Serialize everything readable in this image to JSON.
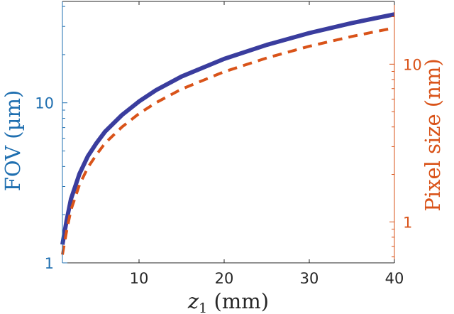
{
  "chart_data": {
    "type": "line",
    "xlabel_var": "z",
    "xlabel_sub": "1",
    "xlabel_unit": " (mm)",
    "ylabel_left": "FOV (µm)",
    "ylabel_right": "Pixel size (nm)",
    "xlim": [
      1,
      40
    ],
    "ylim_left": [
      1,
      43
    ],
    "ylim_right": [
      0.55,
      25
    ],
    "yscale": "log",
    "grid": false,
    "x_ticks": [
      10,
      20,
      30,
      40
    ],
    "y_left_ticks": [
      1,
      10
    ],
    "y_right_ticks": [
      1,
      10
    ],
    "x_tick_labels": [
      "10",
      "20",
      "30",
      "40"
    ],
    "y_left_tick_labels": [
      "1",
      "10"
    ],
    "y_right_tick_labels": [
      "1",
      "10"
    ],
    "series": [
      {
        "axis": "left",
        "style": "solid",
        "color": "#3a3d9e",
        "x": [
          1,
          1.5,
          2,
          3,
          4,
          5,
          6,
          8,
          10,
          12,
          15,
          20,
          25,
          30,
          35,
          40
        ],
        "y": [
          1.3,
          1.85,
          2.5,
          3.6,
          4.65,
          5.6,
          6.6,
          8.4,
          10.2,
          12.0,
          14.6,
          18.8,
          23.0,
          27.3,
          31.5,
          35.7
        ]
      },
      {
        "axis": "right",
        "style": "dashed",
        "color": "#d95319",
        "x": [
          1,
          1.5,
          2,
          3,
          4,
          5,
          6,
          8,
          10,
          12,
          15,
          20,
          25,
          30,
          35,
          40
        ],
        "y": [
          0.62,
          0.88,
          1.19,
          1.72,
          2.22,
          2.67,
          3.15,
          4.0,
          4.86,
          5.7,
          6.95,
          8.95,
          10.95,
          13.0,
          15.0,
          17.0
        ]
      }
    ],
    "colors": {
      "left_axis": "#1f6fb0",
      "right_axis": "#d95319",
      "x_axis": "#262626"
    }
  }
}
